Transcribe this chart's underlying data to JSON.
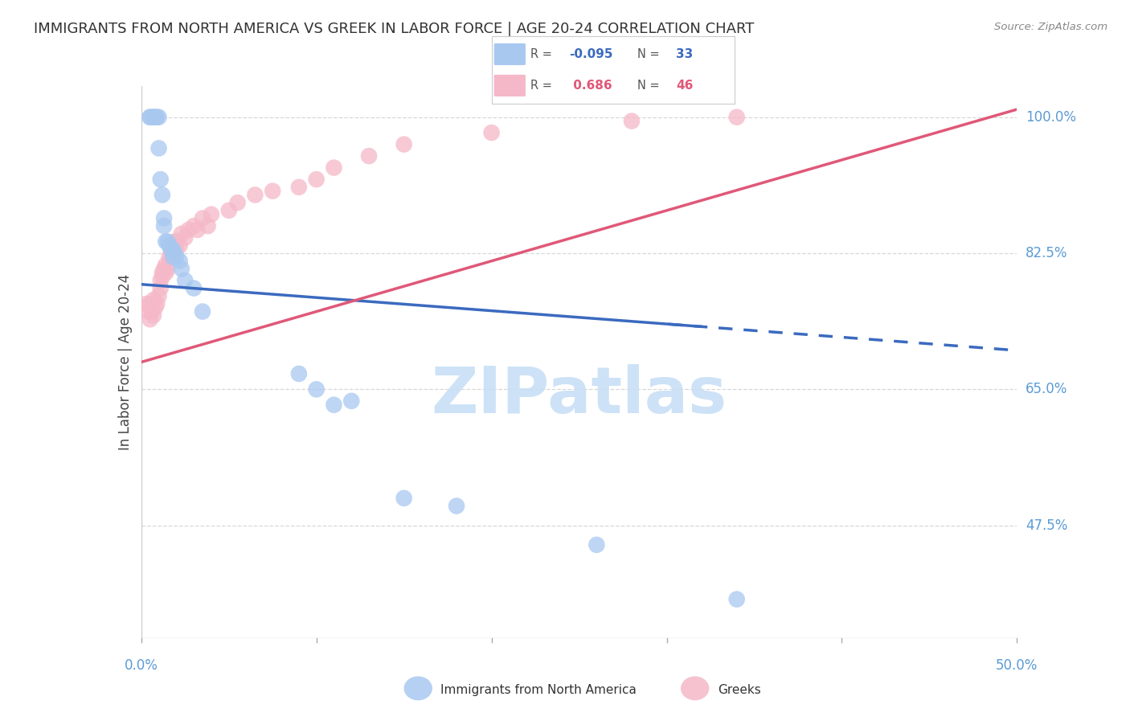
{
  "title": "IMMIGRANTS FROM NORTH AMERICA VS GREEK IN LABOR FORCE | AGE 20-24 CORRELATION CHART",
  "source": "Source: ZipAtlas.com",
  "ylabel": "In Labor Force | Age 20-24",
  "yticks": [
    47.5,
    65.0,
    82.5,
    100.0
  ],
  "ytick_labels": [
    "47.5%",
    "65.0%",
    "82.5%",
    "100.0%"
  ],
  "xmin": 0.0,
  "xmax": 0.5,
  "ymin": 33.0,
  "ymax": 104.0,
  "blue_color": "#a8c8f0",
  "pink_color": "#f5b8c8",
  "blue_line_color": "#3b6abf",
  "pink_line_color": "#e05878",
  "watermark_color": "#c8dff5",
  "grid_color": "#d8d8d8",
  "title_color": "#333333",
  "tick_label_color": "#5b9bd5",
  "blue_line_intercept": 78.5,
  "blue_line_slope": -17.0,
  "pink_line_intercept": 68.5,
  "pink_line_slope": 65.0,
  "blue_scatter_x": [
    0.005,
    0.005,
    0.007,
    0.007,
    0.008,
    0.009,
    0.01,
    0.01,
    0.011,
    0.012,
    0.013,
    0.013,
    0.014,
    0.015,
    0.016,
    0.017,
    0.018,
    0.018,
    0.019,
    0.02,
    0.022,
    0.023,
    0.025,
    0.03,
    0.035,
    0.09,
    0.1,
    0.11,
    0.12,
    0.15,
    0.18,
    0.26,
    0.34
  ],
  "blue_scatter_y": [
    100.0,
    100.0,
    100.0,
    100.0,
    100.0,
    100.0,
    100.0,
    96.0,
    92.0,
    90.0,
    87.0,
    86.0,
    84.0,
    84.0,
    83.5,
    83.0,
    82.0,
    83.0,
    82.5,
    82.0,
    81.5,
    80.5,
    79.0,
    78.0,
    75.0,
    67.0,
    65.0,
    63.0,
    63.5,
    51.0,
    50.0,
    45.0,
    38.0
  ],
  "pink_scatter_x": [
    0.003,
    0.004,
    0.005,
    0.005,
    0.006,
    0.007,
    0.007,
    0.008,
    0.009,
    0.01,
    0.011,
    0.011,
    0.012,
    0.012,
    0.013,
    0.014,
    0.014,
    0.015,
    0.016,
    0.017,
    0.018,
    0.018,
    0.019,
    0.02,
    0.02,
    0.022,
    0.023,
    0.025,
    0.027,
    0.03,
    0.032,
    0.035,
    0.038,
    0.04,
    0.05,
    0.055,
    0.065,
    0.075,
    0.09,
    0.1,
    0.11,
    0.13,
    0.15,
    0.2,
    0.28,
    0.34
  ],
  "pink_scatter_y": [
    76.0,
    75.0,
    74.0,
    76.0,
    75.0,
    76.5,
    74.5,
    75.5,
    76.0,
    77.0,
    78.0,
    79.0,
    80.0,
    79.5,
    80.5,
    80.0,
    81.0,
    80.5,
    82.0,
    82.5,
    83.0,
    82.0,
    84.0,
    83.0,
    84.0,
    83.5,
    85.0,
    84.5,
    85.5,
    86.0,
    85.5,
    87.0,
    86.0,
    87.5,
    88.0,
    89.0,
    90.0,
    90.5,
    91.0,
    92.0,
    93.5,
    95.0,
    96.5,
    98.0,
    99.5,
    100.0
  ]
}
